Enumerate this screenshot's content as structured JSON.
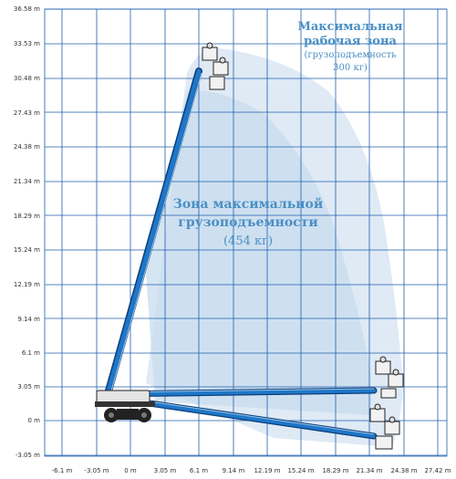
{
  "diagram": {
    "y_axis_labels": [
      "36.58 m",
      "33.53 m",
      "30.48 m",
      "27.43 m",
      "24.38 m",
      "21.34 m",
      "18.29 m",
      "15.24 m",
      "12.19 m",
      "9.14 m",
      "6.1 m",
      "3.05 m",
      "0 m",
      "-3.05 m"
    ],
    "x_axis_labels": [
      "-6.1 m",
      "-3.05 m",
      "0 m",
      "3.05 m",
      "6.1 m",
      "9.14 m",
      "12.19 m",
      "15.24 m",
      "18.29 m",
      "21.34 m",
      "24.38 m",
      "27.42 m"
    ],
    "max_working_zone": {
      "title_line1": "Максимальная",
      "title_line2": "рабочая зона",
      "subtitle_line1": "(грузоподъемность",
      "subtitle_line2": "300 кг)"
    },
    "max_capacity_zone": {
      "title_line1": "Зона максимальной",
      "title_line2": "грузоподъемности",
      "subtitle": "(454 кг)"
    },
    "colors": {
      "grid": "#1f5fae",
      "outer_zone": "#dbe8f3",
      "inner_zone": "#c9dced",
      "boom": "#1f77c8",
      "zone_text": "#4a8fc4"
    }
  }
}
